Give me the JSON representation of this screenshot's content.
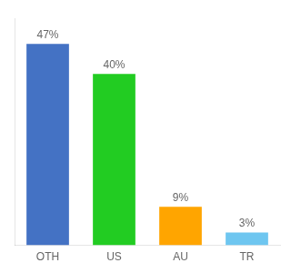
{
  "chart_data": {
    "type": "bar",
    "categories": [
      "OTH",
      "US",
      "AU",
      "TR"
    ],
    "values": [
      47,
      40,
      9,
      3
    ],
    "value_labels": [
      "47%",
      "40%",
      "9%",
      "3%"
    ],
    "colors": [
      "#4472C4",
      "#22CC22",
      "#FFA500",
      "#6EC6F0"
    ],
    "ylim": [
      0,
      53
    ],
    "grid": false,
    "data_labels": true,
    "tick_labels": "x"
  }
}
